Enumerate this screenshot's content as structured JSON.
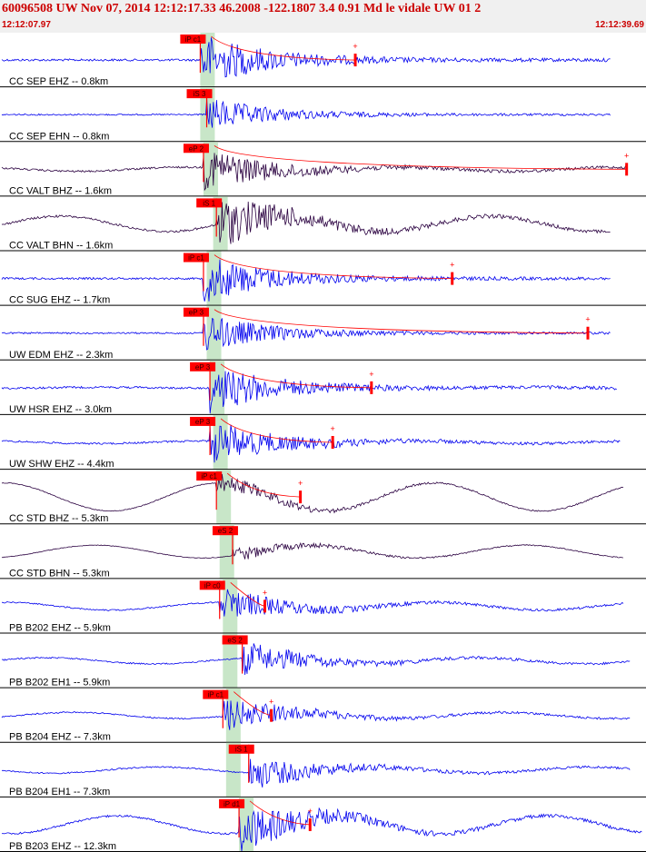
{
  "header": {
    "title": "60096508 UW Nov 07, 2014 12:12:17.33   46.2008 -122.1807  3.4 0.91 Md le vidale UW 01   2",
    "start_time": "12:12:07.97",
    "end_time": "12:12:39.69"
  },
  "colors": {
    "header_text": "#cc0000",
    "trace_blue": "#0000ee",
    "trace_dark": "#2a0040",
    "pick": "#ff0000",
    "window": "#c8e6c8"
  },
  "chart_data": {
    "type": "line",
    "title": "60096508 UW Nov 07, 2014 12:12:17.33",
    "x_range": [
      "12:12:07.97",
      "12:12:39.69"
    ],
    "series": [
      {
        "name": "CC SEP EHZ -- 0.8km",
        "color": "blue",
        "pick": "iP c1",
        "pick_t": 0.31,
        "win_t": 0.31,
        "amp": 0.55,
        "drift": 0.0,
        "end": 0.945,
        "coda": true,
        "dur_t": 0.55
      },
      {
        "name": "CC SEP EHN -- 0.8km",
        "color": "blue",
        "pick": "iS 3",
        "pick_t": 0.32,
        "win_t": 0.31,
        "amp": 0.35,
        "drift": 0.0,
        "end": 0.945,
        "coda": false,
        "dur_t": 0.0
      },
      {
        "name": "CC VALT BHZ -- 1.6km",
        "color": "dark",
        "pick": "eP 2",
        "pick_t": 0.315,
        "win_t": 0.315,
        "amp": 0.45,
        "drift": 0.08,
        "end": 0.97,
        "coda": true,
        "dur_t": 0.97
      },
      {
        "name": "CC VALT BHN -- 1.6km",
        "color": "dark",
        "pick": "iS 1",
        "pick_t": 0.335,
        "win_t": 0.33,
        "amp": 0.55,
        "drift": 0.3,
        "end": 0.945,
        "coda": false,
        "dur_t": 0.0
      },
      {
        "name": "CC SUG EHZ -- 1.7km",
        "color": "blue",
        "pick": "iP c1",
        "pick_t": 0.315,
        "win_t": 0.32,
        "amp": 0.5,
        "drift": 0.0,
        "end": 0.945,
        "coda": true,
        "dur_t": 0.7
      },
      {
        "name": "UW EDM EHZ -- 2.3km",
        "color": "blue",
        "pick": "eP 3",
        "pick_t": 0.315,
        "win_t": 0.32,
        "amp": 0.4,
        "drift": 0.0,
        "end": 0.945,
        "coda": true,
        "dur_t": 0.91
      },
      {
        "name": "UW HSR EHZ -- 3.0km",
        "color": "blue",
        "pick": "eP 3",
        "pick_t": 0.325,
        "win_t": 0.325,
        "amp": 0.5,
        "drift": 0.02,
        "end": 0.955,
        "coda": true,
        "dur_t": 0.575
      },
      {
        "name": "UW SHW EHZ -- 4.4km",
        "color": "blue",
        "pick": "eP 3",
        "pick_t": 0.325,
        "win_t": 0.33,
        "amp": 0.45,
        "drift": 0.05,
        "end": 0.96,
        "coda": true,
        "dur_t": 0.515
      },
      {
        "name": "CC STD BHZ -- 5.3km",
        "color": "dark",
        "pick": "iP c1",
        "pick_t": 0.335,
        "win_t": 0.335,
        "amp": 0.2,
        "drift": 0.55,
        "end": 0.965,
        "coda": true,
        "dur_t": 0.465
      },
      {
        "name": "CC STD BHN -- 5.3km",
        "color": "dark",
        "pick": "eS 2",
        "pick_t": 0.36,
        "win_t": 0.34,
        "amp": 0.15,
        "drift": 0.25,
        "end": 0.965,
        "coda": false,
        "dur_t": 0.0
      },
      {
        "name": "PB B202 EHZ -- 5.9km",
        "color": "blue",
        "pick": "iP c0",
        "pick_t": 0.34,
        "win_t": 0.345,
        "amp": 0.35,
        "drift": 0.15,
        "end": 0.965,
        "coda": true,
        "dur_t": 0.41
      },
      {
        "name": "PB B202 EH1 -- 5.9km",
        "color": "blue",
        "pick": "eS 2",
        "pick_t": 0.375,
        "win_t": 0.345,
        "amp": 0.35,
        "drift": 0.12,
        "end": 0.975,
        "coda": false,
        "dur_t": 0.0
      },
      {
        "name": "PB B204 EHZ -- 7.3km",
        "color": "blue",
        "pick": "iP c1",
        "pick_t": 0.345,
        "win_t": 0.35,
        "amp": 0.35,
        "drift": 0.12,
        "end": 0.975,
        "coda": true,
        "dur_t": 0.42
      },
      {
        "name": "PB B204 EH1 -- 7.3km",
        "color": "blue",
        "pick": "iS 1",
        "pick_t": 0.385,
        "win_t": 0.35,
        "amp": 0.35,
        "drift": 0.12,
        "end": 0.975,
        "coda": false,
        "dur_t": 0.0
      },
      {
        "name": "PB B203 EHZ -- 12.3km",
        "color": "blue",
        "pick": "iP d1",
        "pick_t": 0.37,
        "win_t": 0.37,
        "amp": 0.5,
        "drift": 0.35,
        "end": 0.995,
        "coda": true,
        "dur_t": 0.48
      }
    ]
  }
}
